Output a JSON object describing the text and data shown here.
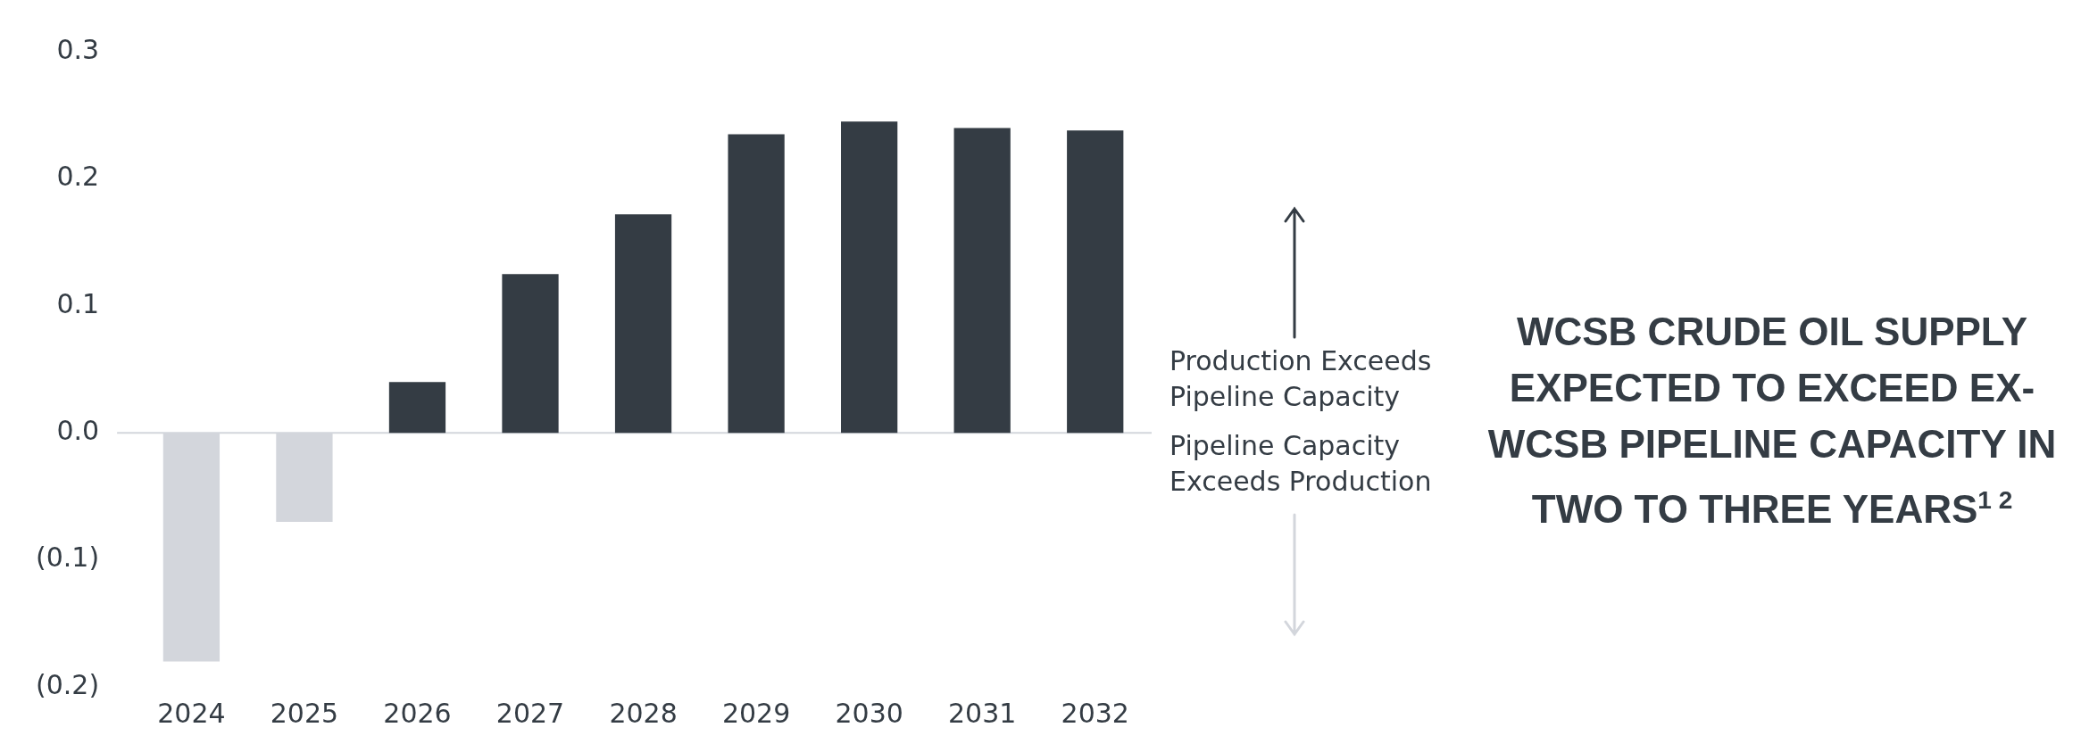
{
  "chart_data": {
    "type": "bar",
    "title": "WCSB CRUDE OIL SUPPLY EXPECTED TO EXCEED EX-WCSB PIPELINE CAPACITY IN TWO TO THREE YEARS$^{1 2}$",
    "categories": [
      "2024",
      "2025",
      "2026",
      "2027",
      "2028",
      "2029",
      "2030",
      "2031",
      "2032"
    ],
    "values": [
      -0.18,
      -0.07,
      0.04,
      0.125,
      0.172,
      0.235,
      0.245,
      0.24,
      0.238
    ],
    "colors": [
      "#d3d6dc",
      "#d3d6dc",
      "#343c44",
      "#343c44",
      "#343c44",
      "#343c44",
      "#343c44",
      "#343c44",
      "#343c44"
    ],
    "ylim": [
      -0.2,
      0.3
    ],
    "yticks": [
      {
        "value": -0.2,
        "label": "(0.2)"
      },
      {
        "value": -0.1,
        "label": "(0.1)"
      },
      {
        "value": 0,
        "label": "0.0"
      },
      0.1,
      0.2,
      0.3
    ],
    "ref_lines": [
      {
        "axis": "y",
        "value": 0,
        "color": "#d3d6dc"
      }
    ],
    "annotations": [
      "Production Exceeds Pipeline Capacity",
      "Pipeline Capacity Exceeds Production"
    ],
    "grid": false,
    "legend": false
  }
}
